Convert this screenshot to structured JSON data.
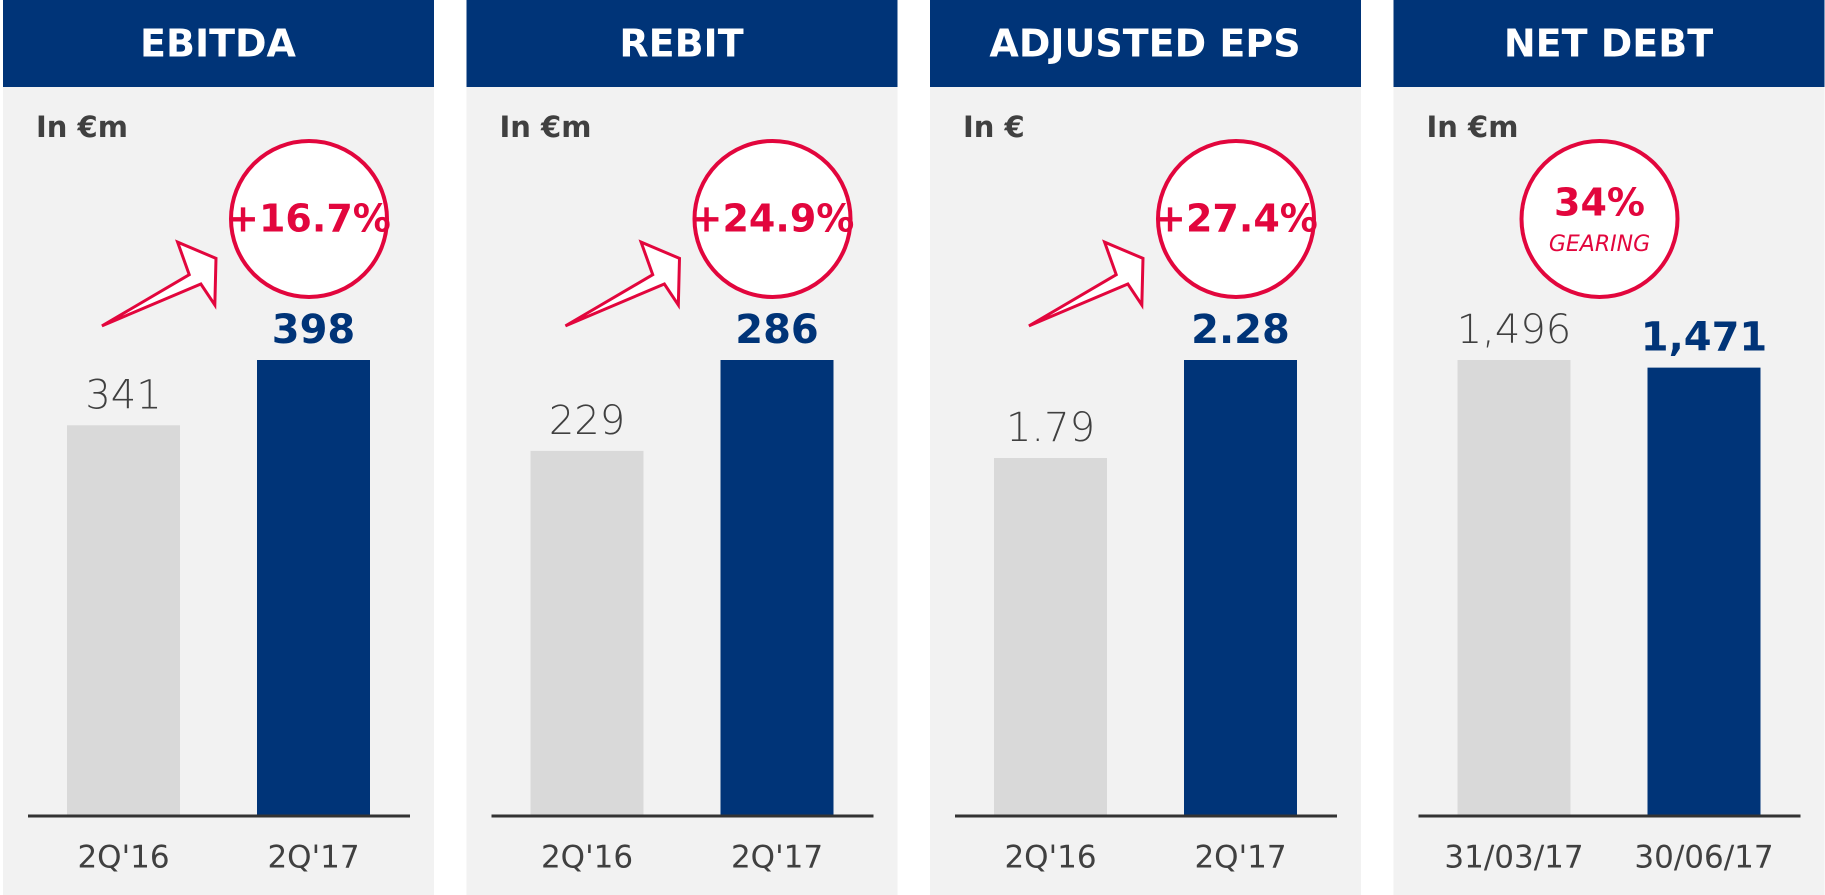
{
  "chart_data": [
    {
      "type": "bar",
      "title": "EBITDA",
      "subtitle": "In €m",
      "annotations": [
        "+16.7%"
      ],
      "categories": [
        "2Q'16",
        "2Q'17"
      ],
      "values": [
        341,
        398
      ],
      "colors": [
        "#d9d9d9",
        "#003478"
      ]
    },
    {
      "type": "bar",
      "title": "REBIT",
      "subtitle": "In €m",
      "annotations": [
        "+24.9%"
      ],
      "categories": [
        "2Q'16",
        "2Q'17"
      ],
      "values": [
        229,
        286
      ],
      "colors": [
        "#d9d9d9",
        "#003478"
      ]
    },
    {
      "type": "bar",
      "title": "ADJUSTED EPS",
      "subtitle": "In €",
      "annotations": [
        "+27.4%"
      ],
      "categories": [
        "2Q'16",
        "2Q'17"
      ],
      "values": [
        1.79,
        2.28
      ],
      "colors": [
        "#d9d9d9",
        "#003478"
      ]
    },
    {
      "type": "bar",
      "title": "NET DEBT",
      "subtitle": "In €m",
      "annotations": [
        "34%",
        "GEARING"
      ],
      "categories": [
        "31/03/17",
        "30/06/17"
      ],
      "values": [
        1496,
        1471
      ],
      "value_labels": [
        "1,496",
        "1,471"
      ],
      "colors": [
        "#d9d9d9",
        "#003478"
      ]
    }
  ]
}
